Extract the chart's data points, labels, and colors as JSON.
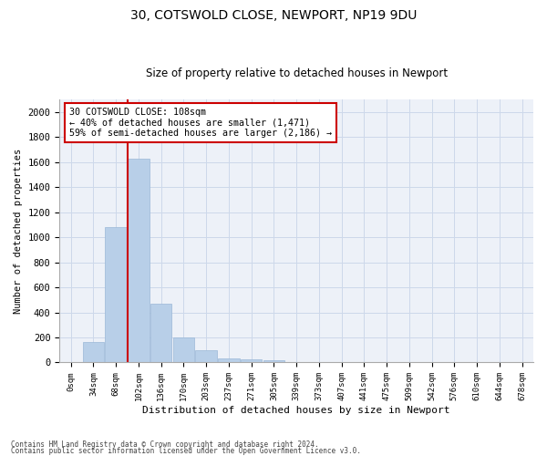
{
  "title_line1": "30, COTSWOLD CLOSE, NEWPORT, NP19 9DU",
  "title_line2": "Size of property relative to detached houses in Newport",
  "xlabel": "Distribution of detached houses by size in Newport",
  "ylabel": "Number of detached properties",
  "bar_labels": [
    "0sqm",
    "34sqm",
    "68sqm",
    "102sqm",
    "136sqm",
    "170sqm",
    "203sqm",
    "237sqm",
    "271sqm",
    "305sqm",
    "339sqm",
    "373sqm",
    "407sqm",
    "441sqm",
    "475sqm",
    "509sqm",
    "542sqm",
    "576sqm",
    "610sqm",
    "644sqm",
    "678sqm"
  ],
  "bar_values": [
    0,
    160,
    1080,
    1630,
    470,
    200,
    100,
    35,
    25,
    15,
    5,
    3,
    2,
    0,
    0,
    0,
    0,
    0,
    0,
    0,
    0
  ],
  "bar_color": "#b8cfe8",
  "bar_edgecolor": "#9ab8d8",
  "vline_x": 3.0,
  "vline_color": "#cc0000",
  "annotation_text": "30 COTSWOLD CLOSE: 108sqm\n← 40% of detached houses are smaller (1,471)\n59% of semi-detached houses are larger (2,186) →",
  "annotation_box_color": "#ffffff",
  "annotation_box_edgecolor": "#cc0000",
  "ylim": [
    0,
    2100
  ],
  "yticks": [
    0,
    200,
    400,
    600,
    800,
    1000,
    1200,
    1400,
    1600,
    1800,
    2000
  ],
  "footer_line1": "Contains HM Land Registry data © Crown copyright and database right 2024.",
  "footer_line2": "Contains public sector information licensed under the Open Government Licence v3.0.",
  "grid_color": "#cdd8ea",
  "background_color": "#edf1f8",
  "title_fontsize": 10,
  "subtitle_fontsize": 8.5
}
